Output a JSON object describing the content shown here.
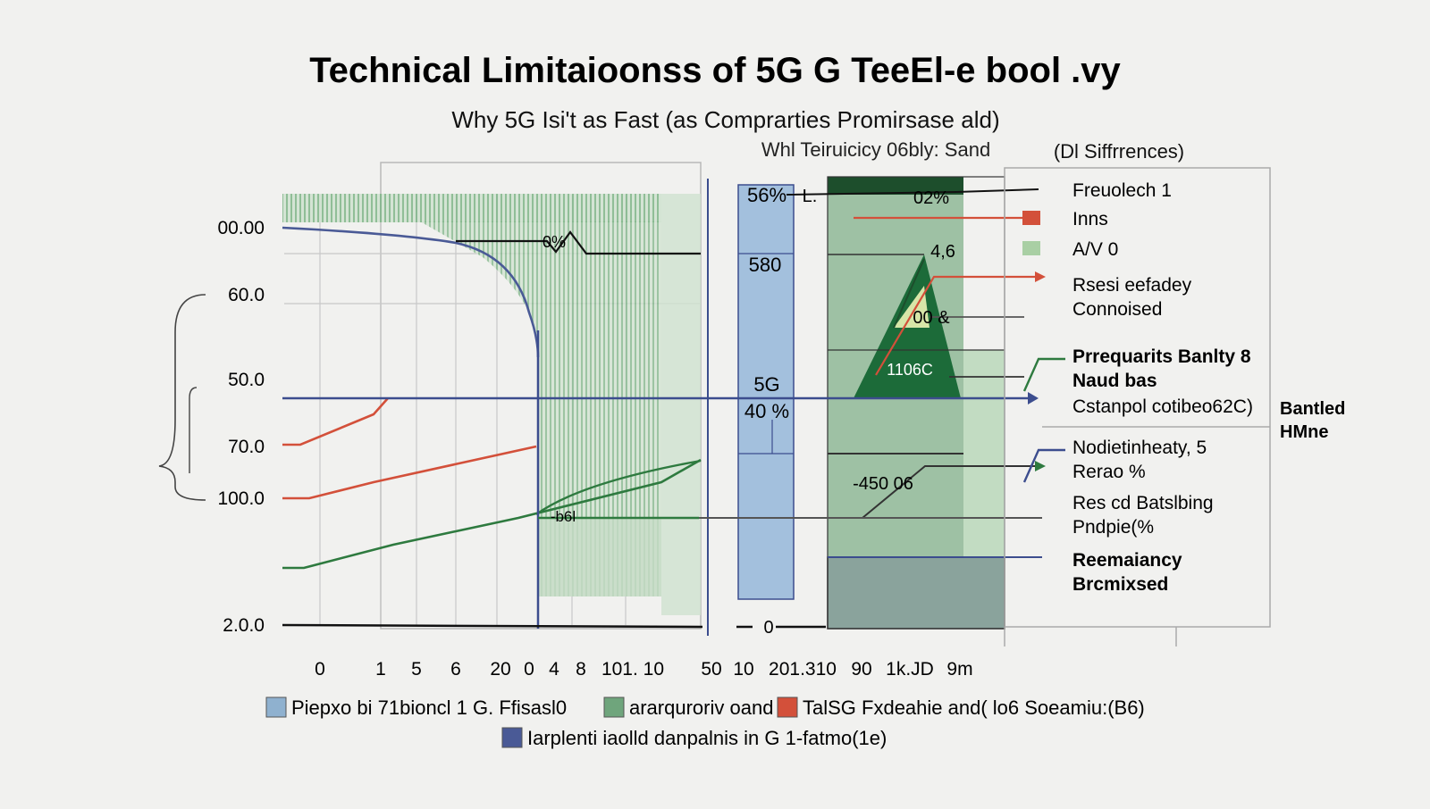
{
  "chart_data": {
    "type": "line",
    "title": "Technical Limitaioonss of 5G G TeeEl-e bool .vy",
    "subtitle": "Why 5G Isi't as Fast (as Comprarties Promirsase ald)",
    "subtitle2": "Whl Teiruicicy 06bly: Sand",
    "right_heading": "(Dl Siffrrences)",
    "ytick_labels": [
      "00.00",
      "60.0",
      "50.0",
      "70.0",
      "100.0",
      "2.0.0"
    ],
    "xtick_labels": [
      "0",
      "1",
      "5",
      "6",
      "20",
      "0",
      "4",
      "8",
      "101. 10",
      "50",
      "10",
      "201.310",
      "90",
      "1k.JD",
      "9m"
    ],
    "series": [
      {
        "name": "Piepxo bi 71bioncl 1 G. Ffisasl0",
        "color": "#8fb1cf",
        "type": "bar",
        "values": [
          56,
          580,
          40
        ]
      },
      {
        "name": "ararquroriv oand",
        "color": "#6fa57c",
        "type": "area",
        "values": [
          60,
          60,
          60,
          60
        ]
      },
      {
        "name": "TalSG Fxdeahie and( lo6 Soeamiu:(B6)",
        "color": "#d3503a",
        "type": "line",
        "x": [
          0,
          1,
          1.3,
          5,
          6,
          20
        ],
        "y": [
          70,
          70,
          75,
          50,
          50,
          70
        ]
      },
      {
        "name": "Iarplenti iaolld danpalnis in G 1-fatmo(1e)",
        "color": "#4a5a96",
        "type": "line",
        "x": [
          0,
          1,
          5,
          6,
          20
        ],
        "y": [
          100,
          60,
          55,
          40,
          2
        ]
      }
    ],
    "annotations": {
      "bar_labels": [
        "56%",
        "L.",
        "580",
        "5G",
        "40 %"
      ],
      "green_panel": [
        "02%",
        "4,6",
        "00 &",
        "1106C",
        "-450 06"
      ],
      "midline": [
        "0%",
        "-b6l"
      ],
      "zero_label": "0",
      "far_right": [
        "Bantled",
        "HMne"
      ]
    },
    "legend_right": [
      {
        "text": "Freuolech 1",
        "swatch": "line",
        "color": "#111111"
      },
      {
        "text": "Inns",
        "swatch": "box",
        "color": "#d3503a"
      },
      {
        "text": "A/V 0",
        "swatch": "box",
        "color": "#a9cfa4"
      },
      {
        "text": "Rsesi eefadey",
        "text2": "Connoised",
        "swatch": "arrow",
        "color": "#d3503a"
      },
      {
        "text": "Prrequarits Banlty 8",
        "text2": "Naud bas",
        "text3": "Cstanpol cotibeo62C)",
        "swatch": "bracket",
        "color": "#2e7a3f"
      },
      {
        "text": "Nodietinheaty, 5",
        "text2": "Rerao %",
        "swatch": "bracket",
        "color": "#3c4d8e"
      },
      {
        "text": "Res cd Batslbing",
        "text2": "Pndpie(%",
        "swatch": "line",
        "color": "#555555"
      },
      {
        "text": "Reemaiancy",
        "text2": "Brcmixsed",
        "swatch": "line",
        "color": "#3c4d8e"
      }
    ],
    "legend_bottom": [
      {
        "text": "Piepxo bi 71bioncl 1 G. Ffisasl0",
        "color": "#8fb1cf"
      },
      {
        "text": "ararquroriv oand",
        "color": "#6fa57c"
      },
      {
        "text": "TalSG Fxdeahie and( lo6 Soeamiu:(B6)",
        "color": "#d3503a"
      },
      {
        "text": "Iarplenti iaolld danpalnis in G 1-fatmo(1e)",
        "color": "#4a5a96"
      }
    ]
  }
}
